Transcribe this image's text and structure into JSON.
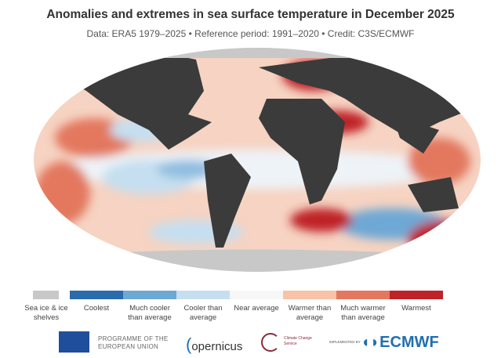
{
  "title": "Anomalies and extremes in sea surface temperature in December 2025",
  "subtitle": "Data: ERA5 1979–2025 • Reference period: 1991–2020 • Credit: C3S/ECMWF",
  "legend": [
    {
      "label": "Sea ice & ice shelves",
      "color": "#c8c8c8"
    },
    {
      "label": "Coolest",
      "color": "#2b6aad"
    },
    {
      "label": "Much cooler than average",
      "color": "#6ea8d4"
    },
    {
      "label": "Cooler than average",
      "color": "#c5dff0"
    },
    {
      "label": "Near average",
      "color": "#f7f7f7"
    },
    {
      "label": "Warmer than average",
      "color": "#f8c3a6"
    },
    {
      "label": "Much warmer than average",
      "color": "#e3785f"
    },
    {
      "label": "Warmest",
      "color": "#bf2228"
    }
  ],
  "colors": {
    "land": "#3b3b3b"
  },
  "logos": {
    "eu": "PROGRAMME OF THE EUROPEAN UNION",
    "copernicus": "opernicus",
    "c3s": "Climate Change Service",
    "implemented": "IMPLEMENTED BY",
    "ecmwf": "ECMWF"
  }
}
